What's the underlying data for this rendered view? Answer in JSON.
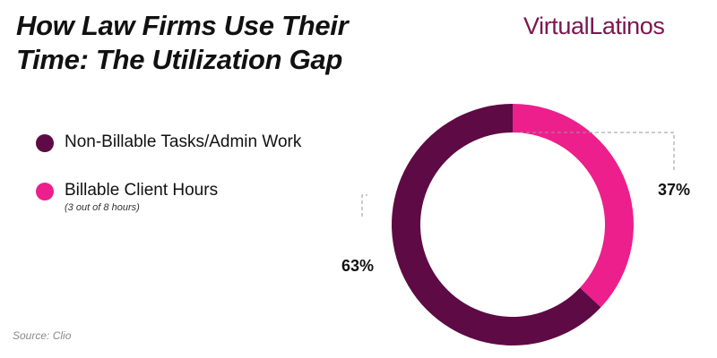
{
  "title": {
    "line1": "How Law Firms Use Their",
    "line2": "Time: The Utilization Gap"
  },
  "brand": {
    "part1": "Virtual",
    "part2": "Latinos"
  },
  "legend": {
    "items": [
      {
        "label": "Non-Billable Tasks/Admin Work",
        "color": "#5e0a45"
      },
      {
        "label": "Billable Client Hours",
        "color": "#ec1f8c"
      }
    ],
    "note": "(3 out of 8 hours)"
  },
  "source": "Source: Clio",
  "chart_data": {
    "type": "pie",
    "donut": true,
    "categories": [
      "Billable Client Hours",
      "Non-Billable Tasks/Admin Work"
    ],
    "values": [
      37,
      63
    ],
    "labels": [
      "37%",
      "63%"
    ],
    "colors": [
      "#ec1f8c",
      "#5e0a45"
    ]
  }
}
